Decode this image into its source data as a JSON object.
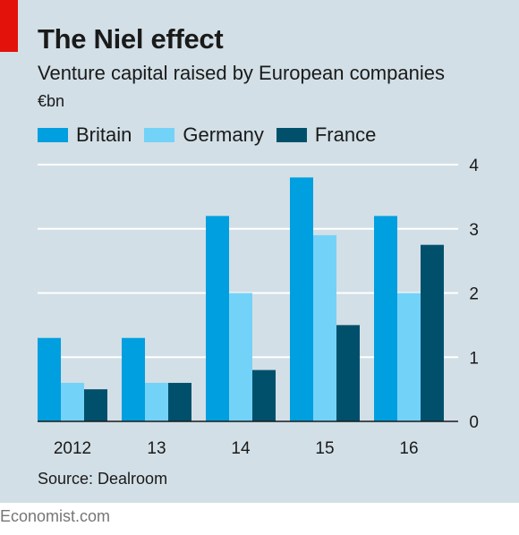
{
  "title": "The Niel effect",
  "subtitle": "Venture capital raised by European companies",
  "unit": "€bn",
  "source": "Source: Dealroom",
  "footer": "Economist.com",
  "colors": {
    "Britain": "#009fdf",
    "Germany": "#73d2f8",
    "France": "#00506c",
    "accent": "#e3120b",
    "background": "#d2dfe6"
  },
  "chart_data": {
    "type": "bar",
    "categories": [
      "2012",
      "13",
      "14",
      "15",
      "16"
    ],
    "series": [
      {
        "name": "Britain",
        "values": [
          1.3,
          1.3,
          3.2,
          3.8,
          3.2
        ]
      },
      {
        "name": "Germany",
        "values": [
          0.6,
          0.6,
          2.0,
          2.9,
          2.0
        ]
      },
      {
        "name": "France",
        "values": [
          0.5,
          0.6,
          0.8,
          1.5,
          2.75
        ]
      }
    ],
    "ylim": [
      0,
      4
    ],
    "yticks": [
      0,
      1,
      2,
      3,
      4
    ],
    "grid": true,
    "legend": "top"
  }
}
